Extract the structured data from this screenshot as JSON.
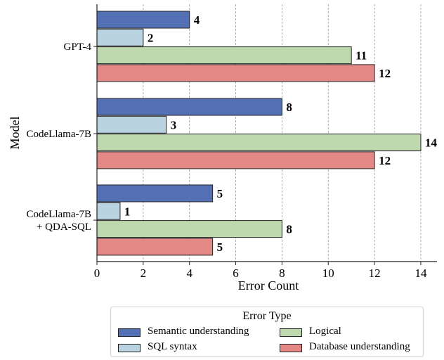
{
  "chart_data": {
    "type": "bar",
    "orientation": "horizontal",
    "title": "",
    "xlabel": "Error Count",
    "ylabel": "Model",
    "xlim": [
      0,
      14.7
    ],
    "xticks": [
      "0",
      "2",
      "4",
      "6",
      "8",
      "10",
      "12",
      "14"
    ],
    "grid": "vertical dashed",
    "categories": [
      "GPT-4",
      "CodeLlama-7B",
      "CodeLlama-7B\n+ QDA-SQL"
    ],
    "series": [
      {
        "name": "Semantic understanding",
        "color": "#5470b4",
        "values": [
          4,
          8,
          5
        ]
      },
      {
        "name": "SQL syntax",
        "color": "#b9d4e0",
        "values": [
          2,
          3,
          1
        ]
      },
      {
        "name": "Logical",
        "color": "#bed9ad",
        "values": [
          11,
          14,
          8
        ]
      },
      {
        "name": "Database understanding",
        "color": "#e48886",
        "values": [
          12,
          12,
          5
        ]
      }
    ],
    "legend": {
      "title": "Error Type",
      "placement": "bottom-center"
    }
  }
}
